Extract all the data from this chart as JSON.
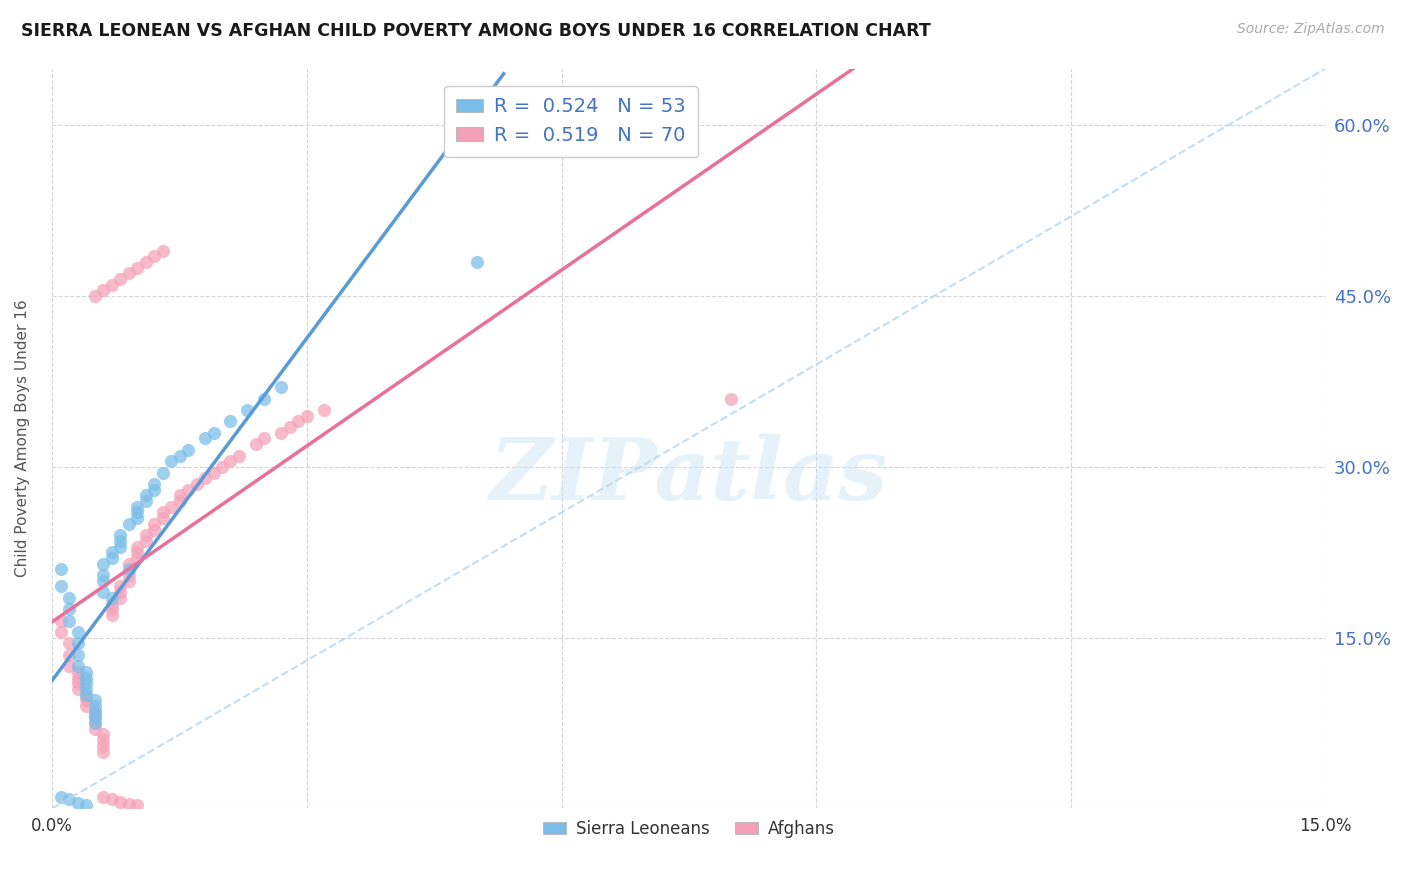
{
  "title": "SIERRA LEONEAN VS AFGHAN CHILD POVERTY AMONG BOYS UNDER 16 CORRELATION CHART",
  "source": "Source: ZipAtlas.com",
  "ylabel": "Child Poverty Among Boys Under 16",
  "xmin": 0.0,
  "xmax": 0.15,
  "ymin": 0.0,
  "ymax": 0.65,
  "xticks": [
    0.0,
    0.03,
    0.06,
    0.09,
    0.12,
    0.15
  ],
  "xticklabels": [
    "0.0%",
    "",
    "",
    "",
    "",
    "15.0%"
  ],
  "yticks": [
    0.0,
    0.15,
    0.3,
    0.45,
    0.6
  ],
  "yticklabels_right": [
    "",
    "15.0%",
    "30.0%",
    "45.0%",
    "60.0%"
  ],
  "legend_label1": "Sierra Leoneans",
  "legend_label2": "Afghans",
  "color_blue": "#7abde8",
  "color_pink": "#f4a0b8",
  "color_blue_line": "#5b9bd5",
  "color_pink_line": "#e8709a",
  "color_dashed": "#b8d8f0",
  "watermark_text": "ZIPatlas",
  "blue_line_x0": 0.0,
  "blue_line_y0": 0.09,
  "blue_line_x1": 0.065,
  "blue_line_y1": 0.4,
  "pink_line_x0": 0.0,
  "pink_line_y0": 0.09,
  "pink_line_x1": 0.15,
  "pink_line_y1": 0.6,
  "dash_line_x0": 0.0,
  "dash_line_y0": 0.0,
  "dash_line_x1": 0.15,
  "dash_line_y1": 0.65,
  "sierra_x": [
    0.001,
    0.001,
    0.002,
    0.002,
    0.002,
    0.003,
    0.003,
    0.003,
    0.003,
    0.004,
    0.004,
    0.004,
    0.004,
    0.004,
    0.005,
    0.005,
    0.005,
    0.005,
    0.005,
    0.006,
    0.006,
    0.006,
    0.006,
    0.007,
    0.007,
    0.007,
    0.008,
    0.008,
    0.008,
    0.009,
    0.009,
    0.01,
    0.01,
    0.01,
    0.011,
    0.011,
    0.012,
    0.012,
    0.013,
    0.014,
    0.015,
    0.016,
    0.018,
    0.019,
    0.021,
    0.023,
    0.025,
    0.027,
    0.05,
    0.001,
    0.002,
    0.003,
    0.004
  ],
  "sierra_y": [
    0.195,
    0.21,
    0.175,
    0.185,
    0.165,
    0.155,
    0.145,
    0.135,
    0.125,
    0.12,
    0.115,
    0.11,
    0.105,
    0.1,
    0.095,
    0.09,
    0.085,
    0.08,
    0.075,
    0.19,
    0.2,
    0.205,
    0.215,
    0.185,
    0.22,
    0.225,
    0.23,
    0.235,
    0.24,
    0.21,
    0.25,
    0.255,
    0.26,
    0.265,
    0.27,
    0.275,
    0.28,
    0.285,
    0.295,
    0.305,
    0.31,
    0.315,
    0.325,
    0.33,
    0.34,
    0.35,
    0.36,
    0.37,
    0.48,
    0.01,
    0.008,
    0.005,
    0.003
  ],
  "afghan_x": [
    0.001,
    0.001,
    0.002,
    0.002,
    0.002,
    0.003,
    0.003,
    0.003,
    0.003,
    0.004,
    0.004,
    0.004,
    0.005,
    0.005,
    0.005,
    0.005,
    0.006,
    0.006,
    0.006,
    0.006,
    0.007,
    0.007,
    0.007,
    0.008,
    0.008,
    0.008,
    0.009,
    0.009,
    0.009,
    0.01,
    0.01,
    0.01,
    0.011,
    0.011,
    0.012,
    0.012,
    0.013,
    0.013,
    0.014,
    0.015,
    0.015,
    0.016,
    0.017,
    0.018,
    0.019,
    0.02,
    0.021,
    0.022,
    0.024,
    0.025,
    0.027,
    0.028,
    0.029,
    0.03,
    0.032,
    0.005,
    0.006,
    0.007,
    0.008,
    0.009,
    0.01,
    0.011,
    0.012,
    0.013,
    0.08,
    0.006,
    0.007,
    0.008,
    0.009,
    0.01
  ],
  "afghan_y": [
    0.155,
    0.165,
    0.145,
    0.135,
    0.125,
    0.12,
    0.115,
    0.11,
    0.105,
    0.1,
    0.095,
    0.09,
    0.085,
    0.08,
    0.075,
    0.07,
    0.065,
    0.06,
    0.055,
    0.05,
    0.17,
    0.175,
    0.18,
    0.185,
    0.19,
    0.195,
    0.2,
    0.205,
    0.215,
    0.22,
    0.225,
    0.23,
    0.235,
    0.24,
    0.245,
    0.25,
    0.255,
    0.26,
    0.265,
    0.27,
    0.275,
    0.28,
    0.285,
    0.29,
    0.295,
    0.3,
    0.305,
    0.31,
    0.32,
    0.325,
    0.33,
    0.335,
    0.34,
    0.345,
    0.35,
    0.45,
    0.455,
    0.46,
    0.465,
    0.47,
    0.475,
    0.48,
    0.485,
    0.49,
    0.36,
    0.01,
    0.008,
    0.006,
    0.004,
    0.003
  ]
}
